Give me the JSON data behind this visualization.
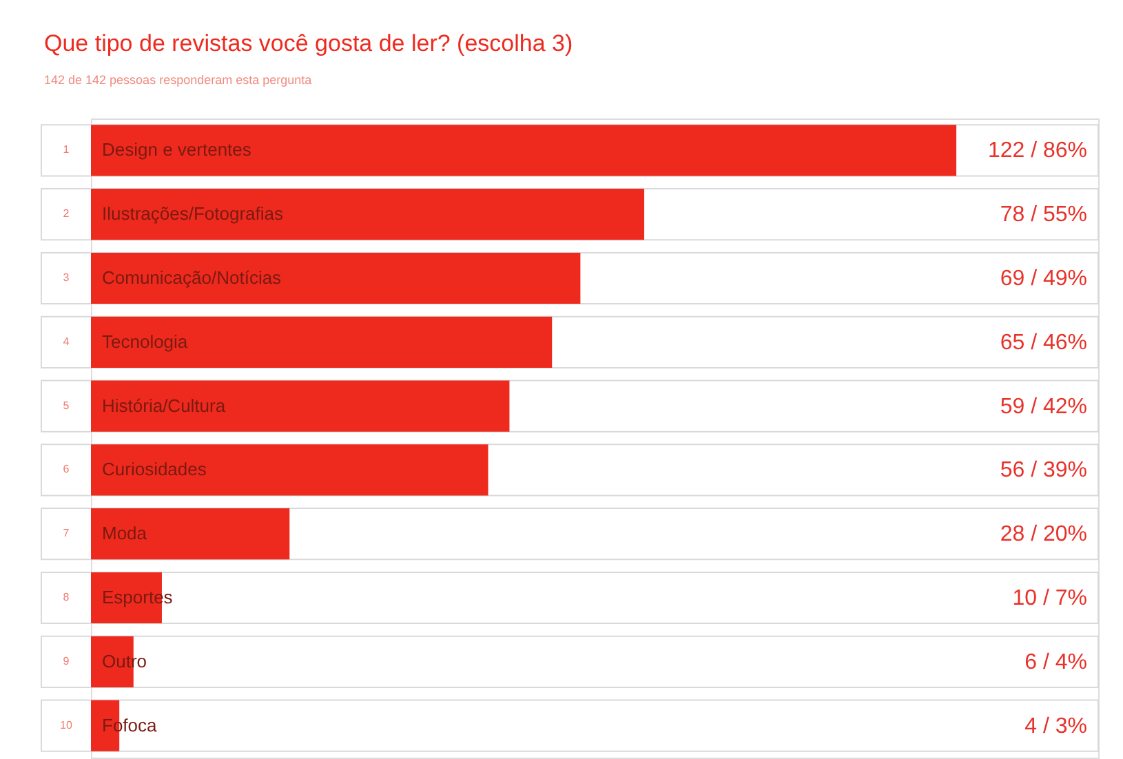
{
  "chart_data": {
    "type": "bar",
    "orientation": "horizontal",
    "title": "Que tipo de revistas você gosta de ler? (escolha 3)",
    "subtitle": "142 de 142 pessoas responderam esta pergunta",
    "categories": [
      "Design e vertentes",
      "Ilustrações/Fotografias",
      "Comunicação/Notícias",
      "Tecnologia",
      "História/Cultura",
      "Curiosidades",
      "Moda",
      "Esportes",
      "Outro",
      "Fofoca"
    ],
    "values": [
      122,
      78,
      69,
      65,
      59,
      56,
      28,
      10,
      6,
      4
    ],
    "value_labels": [
      "122 / 86%",
      "78 / 55%",
      "69 / 49%",
      "65 / 46%",
      "59 / 42%",
      "56 / 39%",
      "28 / 20%",
      "10 / 7%",
      "6 / 4%",
      "4 / 3%"
    ],
    "annotations": [
      "1",
      "2",
      "3",
      "4",
      "5",
      "6",
      "7",
      "8",
      "9",
      "10"
    ],
    "color": "#ee2a1f",
    "xlim": [
      0,
      142
    ],
    "grid": false
  }
}
